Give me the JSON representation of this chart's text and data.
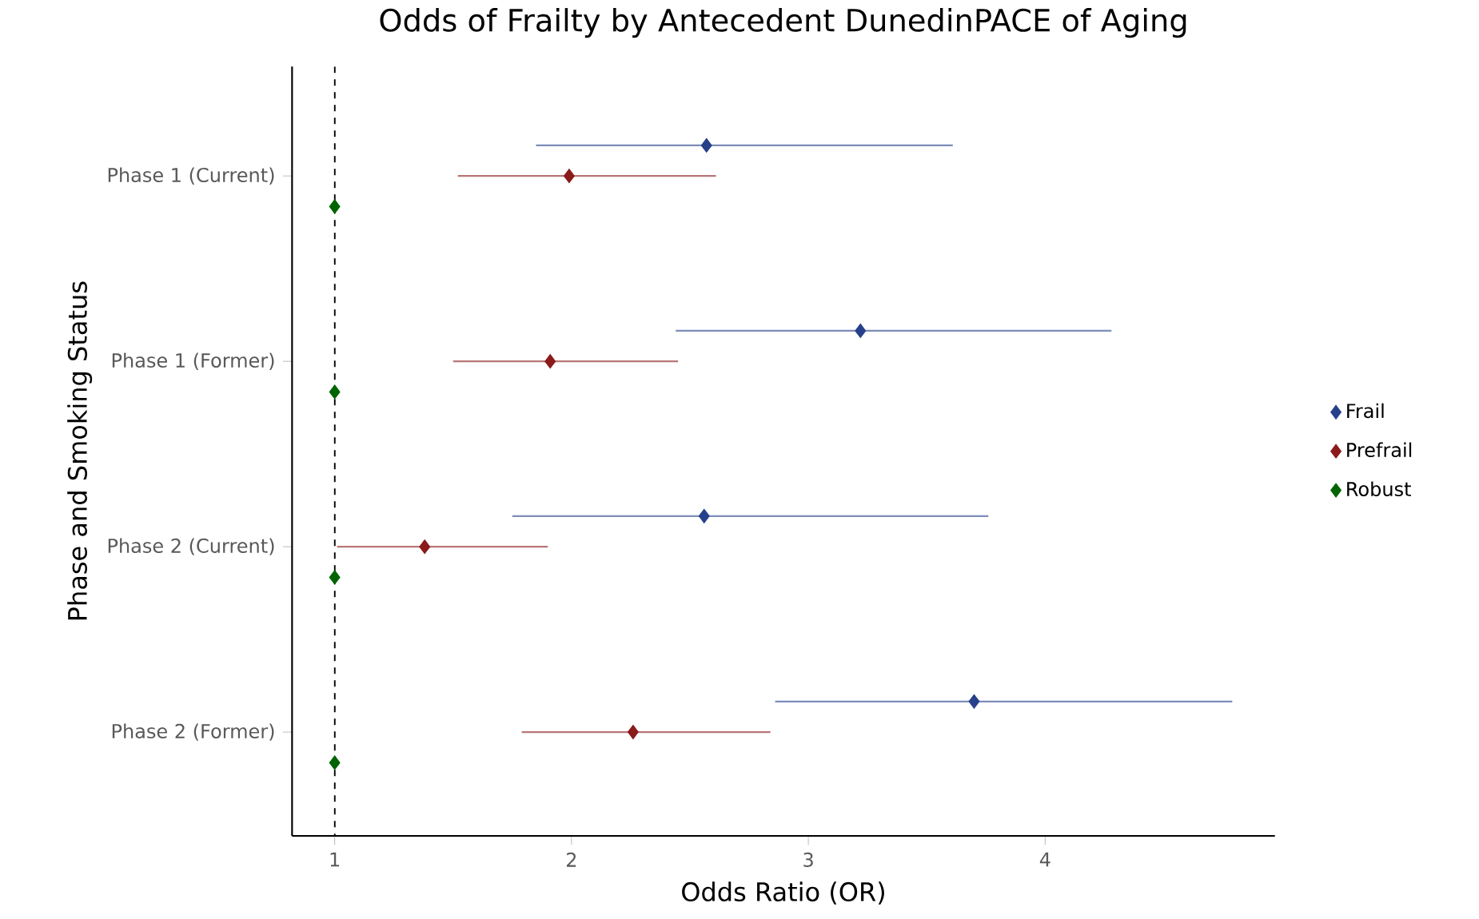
{
  "chart_data": {
    "type": "scatter",
    "orientation": "horizontal",
    "title": "Odds of Frailty by Antecedent DunedinPACE of Aging",
    "xlabel": "Odds Ratio (OR)",
    "ylabel": "Phase and Smoking Status",
    "categories": [
      "Phase 1 (Current)",
      "Phase 1 (Former)",
      "Phase 2 (Current)",
      "Phase 2 (Former)"
    ],
    "series": [
      {
        "name": "Frail",
        "color": "#27408b",
        "values": [
          2.57,
          3.22,
          2.56,
          3.7
        ],
        "errors": [
          [
            1.85,
            3.61
          ],
          [
            2.44,
            4.28
          ],
          [
            1.75,
            3.76
          ],
          [
            2.86,
            4.79
          ]
        ]
      },
      {
        "name": "Prefrail",
        "color": "#8b1a1a",
        "values": [
          1.99,
          1.91,
          1.38,
          2.26
        ],
        "errors": [
          [
            1.52,
            2.61
          ],
          [
            1.5,
            2.45
          ],
          [
            1.01,
            1.9
          ],
          [
            1.79,
            2.84
          ]
        ]
      },
      {
        "name": "Robust",
        "color": "#006400",
        "values": [
          1.0,
          1.0,
          1.0,
          1.0
        ]
      }
    ],
    "xlim": [
      0.82,
      4.97
    ],
    "xticks": [
      1,
      2,
      3,
      4
    ],
    "ref_lines": [
      {
        "axis": "x",
        "value": 1,
        "line_style": "dashed"
      }
    ],
    "marker": "diamond",
    "legend": "right",
    "grid": false
  }
}
